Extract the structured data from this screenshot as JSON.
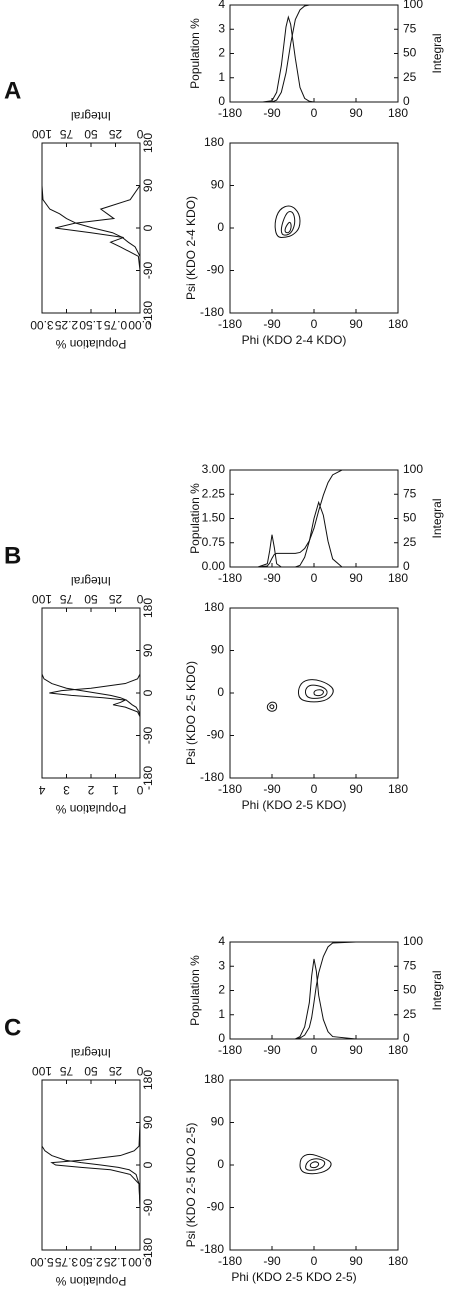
{
  "panels": [
    {
      "label": "A",
      "phi_distribution": {
        "type": "line",
        "ylabel": "Population %",
        "y2label": "Integral",
        "xlim": [
          -180,
          180
        ],
        "xticks": [
          -180,
          -90,
          0,
          90,
          180
        ],
        "ylim": [
          0,
          4
        ],
        "yticks": [
          0,
          1,
          2,
          3,
          4
        ],
        "y2lim": [
          0,
          100
        ],
        "y2ticks": [
          0,
          25,
          50,
          75,
          100
        ],
        "x": [
          -180,
          -110,
          -90,
          -80,
          -70,
          -60,
          -55,
          -50,
          -40,
          -30,
          -20,
          -10,
          0,
          90,
          180
        ],
        "series": [
          {
            "values": [
              0,
              0,
              0.05,
              0.4,
              1.5,
              3.1,
              3.5,
              3.2,
              1.8,
              0.6,
              0.15,
              0.03,
              0,
              0,
              0
            ]
          },
          {
            "axis": "y2",
            "values": [
              0,
              0,
              0,
              2,
              10,
              30,
              45,
              60,
              85,
              95,
              99,
              100,
              100,
              100,
              100
            ]
          }
        ]
      },
      "psi_distribution": {
        "type": "line",
        "ylabel": "Population %",
        "y2label": "Integral",
        "xlim": [
          -180,
          180
        ],
        "xticks": [
          -180,
          -90,
          0,
          90,
          180
        ],
        "ylim": [
          0,
          3
        ],
        "yticks": [
          {
            "value": 0,
            "label": "0.00"
          },
          0.75,
          {
            "value": 1.5,
            "label": "1.50"
          },
          2.25,
          {
            "value": 3,
            "label": "3.00"
          }
        ],
        "y2lim": [
          0,
          100
        ],
        "y2ticks": [
          0,
          25,
          50,
          75,
          100
        ],
        "x": [
          -180,
          -90,
          -60,
          -40,
          -30,
          -20,
          -10,
          0,
          10,
          20,
          30,
          40,
          60,
          90,
          180
        ],
        "series": [
          {
            "values": [
              0,
              0,
              0.05,
              0.6,
              0.9,
              0.5,
              1.5,
              2.6,
              2.0,
              0.8,
              1.0,
              1.2,
              0.3,
              0,
              0
            ]
          },
          {
            "axis": "y2",
            "values": [
              0,
              0,
              0,
              5,
              12,
              18,
              28,
              48,
              65,
              75,
              82,
              92,
              99,
              100,
              100
            ]
          }
        ]
      },
      "contour_plot": {
        "type": "contour",
        "xlabel": "Phi (KDO 2-4 KDO)",
        "ylabel": "Psi (KDO 2-4 KDO)",
        "xlim": [
          -180,
          180
        ],
        "ylim": [
          -180,
          180
        ],
        "xticks": [
          -180,
          -90,
          0,
          90,
          180
        ],
        "yticks": [
          -180,
          -90,
          0,
          90,
          180
        ],
        "contours": [
          {
            "x": [
              -80,
              -60,
              -45,
              -30,
              -30,
              -50,
              -75,
              -85
            ],
            "y": [
              -20,
              -20,
              -15,
              0,
              30,
              50,
              40,
              10
            ]
          },
          {
            "x": [
              -70,
              -55,
              -45,
              -40,
              -45,
              -58,
              -70
            ],
            "y": [
              -15,
              -15,
              -5,
              15,
              35,
              35,
              5
            ]
          },
          {
            "x": [
              -62,
              -52,
              -48,
              -52,
              -62
            ],
            "y": [
              -10,
              -10,
              5,
              15,
              0
            ]
          }
        ]
      }
    },
    {
      "label": "B",
      "phi_distribution": {
        "type": "line",
        "ylabel": "Population %",
        "y2label": "Integral",
        "xlim": [
          -180,
          180
        ],
        "xticks": [
          -180,
          -90,
          0,
          90,
          180
        ],
        "ylim": [
          0,
          3
        ],
        "yticks": [
          {
            "value": 0,
            "label": "0.00"
          },
          0.75,
          {
            "value": 1.5,
            "label": "1.50"
          },
          2.25,
          {
            "value": 3,
            "label": "3.00"
          }
        ],
        "y2lim": [
          0,
          100
        ],
        "y2ticks": [
          0,
          25,
          50,
          75,
          100
        ],
        "x": [
          -180,
          -120,
          -100,
          -95,
          -90,
          -85,
          -80,
          -70,
          -40,
          -30,
          -20,
          -10,
          0,
          10,
          20,
          30,
          40,
          60,
          90,
          180
        ],
        "series": [
          {
            "values": [
              0,
              0,
              0.1,
              0.5,
              1.0,
              0.6,
              0.1,
              0,
              0,
              0.05,
              0.3,
              0.8,
              1.5,
              2.0,
              1.6,
              0.8,
              0.25,
              0,
              0,
              0
            ]
          },
          {
            "axis": "y2",
            "values": [
              0,
              0,
              1,
              4,
              9,
              13,
              14,
              14,
              14,
              15,
              19,
              27,
              40,
              58,
              74,
              87,
              95,
              100,
              100,
              100
            ]
          }
        ]
      },
      "psi_distribution": {
        "type": "line",
        "ylabel": "Population %",
        "y2label": "Integral",
        "xlim": [
          -180,
          180
        ],
        "xticks": [
          -180,
          -90,
          0,
          90,
          180
        ],
        "ylim": [
          0,
          4
        ],
        "yticks": [
          0,
          1,
          2,
          3,
          4
        ],
        "y2lim": [
          0,
          100
        ],
        "y2ticks": [
          0,
          25,
          50,
          75,
          100
        ],
        "x": [
          -180,
          -90,
          -50,
          -40,
          -30,
          -25,
          -20,
          -15,
          -10,
          -5,
          0,
          5,
          10,
          20,
          30,
          40,
          90,
          180
        ],
        "series": [
          {
            "values": [
              0,
              0,
              0,
              0.1,
              0.6,
              1.1,
              0.8,
              0.6,
              1.5,
              2.8,
              3.7,
              3.2,
              2.0,
              0.6,
              0.1,
              0,
              0,
              0
            ]
          },
          {
            "axis": "y2",
            "values": [
              0,
              0,
              0,
              1,
              4,
              8,
              11,
              14,
              20,
              30,
              45,
              60,
              75,
              90,
              98,
              100,
              100,
              100
            ]
          }
        ]
      },
      "contour_plot": {
        "type": "contour",
        "xlabel": "Phi (KDO 2-5 KDO)",
        "ylabel": "Psi (KDO 2-5 KDO)",
        "xlim": [
          -180,
          180
        ],
        "ylim": [
          -180,
          180
        ],
        "xticks": [
          -180,
          -90,
          0,
          90,
          180
        ],
        "yticks": [
          -180,
          -90,
          0,
          90,
          180
        ],
        "contours": [
          {
            "x": [
              -100,
              -90,
              -80,
              -80,
              -90,
              -100
            ],
            "y": [
              -35,
              -40,
              -35,
              -22,
              -18,
              -25
            ]
          },
          {
            "x": [
              -94,
              -88,
              -85,
              -90,
              -95
            ],
            "y": [
              -32,
              -34,
              -28,
              -24,
              -27
            ]
          },
          {
            "x": [
              -30,
              0,
              30,
              45,
              30,
              0,
              -25,
              -35
            ],
            "y": [
              -15,
              -20,
              -15,
              5,
              20,
              30,
              25,
              5
            ]
          },
          {
            "x": [
              -15,
              5,
              25,
              30,
              15,
              -10,
              -20
            ],
            "y": [
              -10,
              -12,
              -8,
              5,
              15,
              18,
              5
            ]
          },
          {
            "x": [
              0,
              15,
              22,
              15,
              0
            ],
            "y": [
              -5,
              -6,
              2,
              8,
              5
            ]
          }
        ]
      }
    },
    {
      "label": "C",
      "phi_distribution": {
        "type": "line",
        "ylabel": "Population %",
        "y2label": "Integral",
        "xlim": [
          -180,
          180
        ],
        "xticks": [
          -180,
          -90,
          0,
          90,
          180
        ],
        "ylim": [
          0,
          4
        ],
        "yticks": [
          0,
          1,
          2,
          3,
          4
        ],
        "y2lim": [
          0,
          100
        ],
        "y2ticks": [
          0,
          25,
          50,
          75,
          100
        ],
        "x": [
          -180,
          -90,
          -40,
          -30,
          -20,
          -10,
          -5,
          0,
          5,
          10,
          20,
          30,
          40,
          90,
          180
        ],
        "series": [
          {
            "values": [
              0,
              0,
              0,
              0.1,
              0.5,
              1.5,
              2.6,
              3.3,
              2.8,
              1.8,
              0.8,
              0.3,
              0.1,
              0,
              0
            ]
          },
          {
            "axis": "y2",
            "values": [
              0,
              0,
              0,
              1,
              4,
              12,
              22,
              38,
              55,
              68,
              85,
              95,
              99,
              100,
              100
            ]
          }
        ]
      },
      "psi_distribution": {
        "type": "line",
        "ylabel": "Population %",
        "y2label": "Integral",
        "xlim": [
          -180,
          180
        ],
        "xticks": [
          -180,
          -90,
          0,
          90,
          180
        ],
        "ylim": [
          0,
          5
        ],
        "yticks": [
          {
            "value": 0,
            "label": "0.00"
          },
          1.25,
          {
            "value": 2.5,
            "label": "2.50"
          },
          3.75,
          {
            "value": 5,
            "label": "5.00"
          }
        ],
        "y2lim": [
          0,
          100
        ],
        "y2ticks": [
          0,
          25,
          50,
          75,
          100
        ],
        "x": [
          -180,
          -90,
          -40,
          -20,
          -10,
          -5,
          0,
          5,
          10,
          20,
          30,
          40,
          90,
          180
        ],
        "series": [
          {
            "values": [
              0,
              0,
              0.05,
              0.5,
              1.5,
              3.0,
              4.3,
              4.5,
              3.0,
              1.0,
              0.3,
              0.05,
              0,
              0
            ]
          },
          {
            "axis": "y2",
            "values": [
              0,
              0,
              1,
              4,
              11,
              22,
              40,
              60,
              76,
              90,
              97,
              100,
              100,
              100
            ]
          }
        ]
      },
      "contour_plot": {
        "type": "contour",
        "xlabel": "Phi (KDO 2-5 KDO 2-5)",
        "ylabel": "Psi (KDO 2-5 KDO 2-5)",
        "xlim": [
          -180,
          180
        ],
        "ylim": [
          -180,
          180
        ],
        "xticks": [
          -180,
          -90,
          0,
          90,
          180
        ],
        "yticks": [
          -180,
          -90,
          0,
          90,
          180
        ],
        "contours": [
          {
            "x": [
              -30,
              0,
              30,
              40,
              20,
              -10,
              -30
            ],
            "y": [
              -15,
              -20,
              -12,
              5,
              15,
              25,
              15
            ]
          },
          {
            "x": [
              -20,
              0,
              20,
              25,
              5,
              -15
            ],
            "y": [
              -10,
              -12,
              -5,
              8,
              15,
              8
            ]
          },
          {
            "x": [
              -8,
              5,
              12,
              3,
              -8
            ],
            "y": [
              -5,
              -6,
              3,
              8,
              3
            ]
          }
        ]
      }
    }
  ]
}
